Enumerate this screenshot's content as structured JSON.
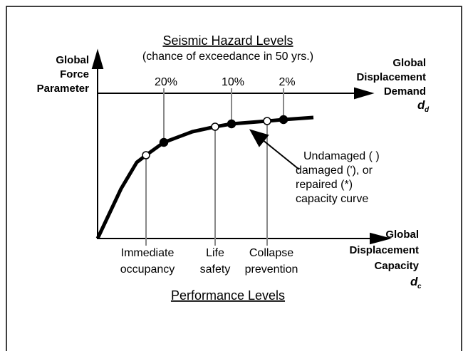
{
  "title": "Seismic Hazard Levels",
  "subtitle": "(chance of exceedance in 50 yrs.)",
  "y_axis": [
    "Global",
    "Force",
    "Parameter"
  ],
  "demand_axis": {
    "lines": [
      "Global",
      "Displacement",
      "Demand"
    ],
    "symbol": "d",
    "subscript": "d"
  },
  "capacity_axis": {
    "lines": [
      "Global",
      "Displacement",
      "Capacity"
    ],
    "symbol": "d",
    "subscript": "c"
  },
  "hazard_levels": [
    "20%",
    "10%",
    "2%"
  ],
  "performance_levels": [
    [
      "Immediate",
      "occupancy"
    ],
    [
      "Life",
      "safety"
    ],
    [
      "Collapse",
      "prevention"
    ]
  ],
  "curve_note": [
    "Undamaged ( )",
    "damaged ('), or",
    "repaired (*)",
    "capacity curve"
  ],
  "footer": "Performance Levels"
}
